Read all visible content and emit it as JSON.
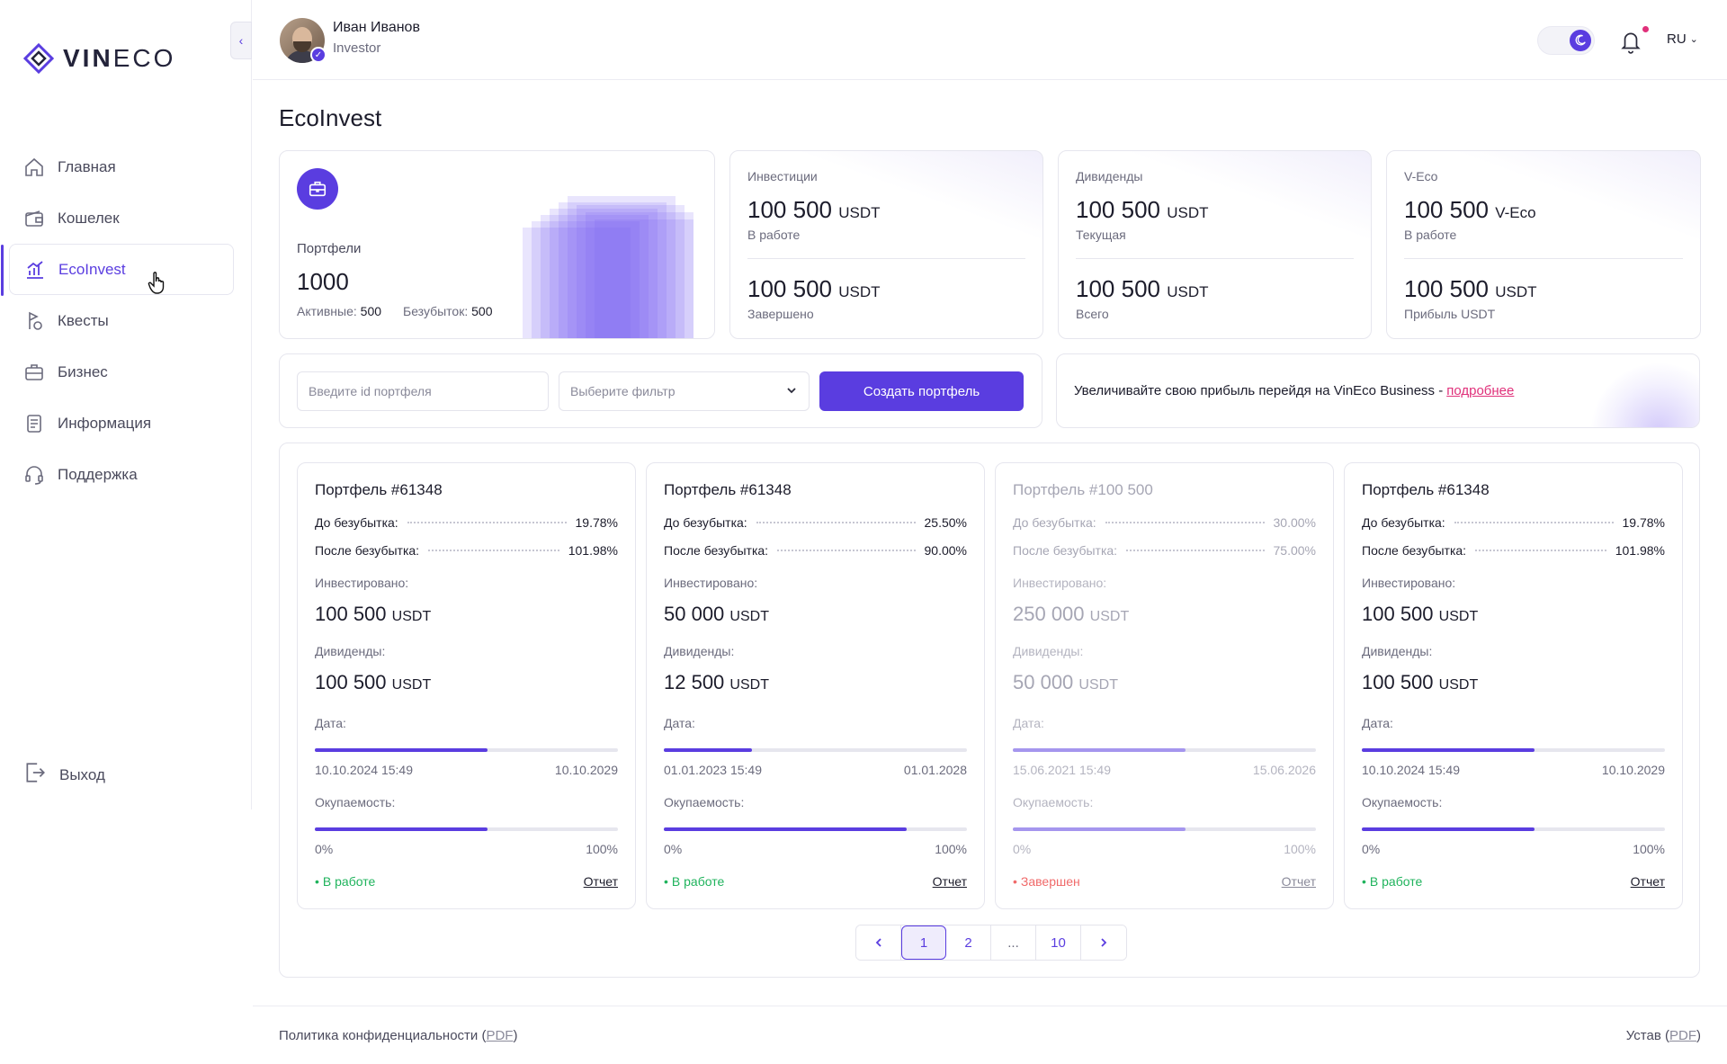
{
  "brand": {
    "name_bold": "VIN",
    "name_rest": "ECO"
  },
  "sidebar": {
    "items": [
      {
        "label": "Главная",
        "icon": "home-icon"
      },
      {
        "label": "Кошелек",
        "icon": "wallet-icon"
      },
      {
        "label": "EcoInvest",
        "icon": "chart-icon",
        "active": true
      },
      {
        "label": "Квесты",
        "icon": "quest-icon"
      },
      {
        "label": "Бизнес",
        "icon": "briefcase-icon"
      },
      {
        "label": "Информация",
        "icon": "document-icon"
      },
      {
        "label": "Поддержка",
        "icon": "headset-icon"
      }
    ],
    "logout": "Выход"
  },
  "header": {
    "user_name": "Иван Иванов",
    "user_role": "Investor",
    "lang": "RU"
  },
  "page": {
    "title": "EcoInvest"
  },
  "portfolio_summary": {
    "label": "Портфели",
    "value": "1000",
    "active_label": "Активные:",
    "active_value": "500",
    "loss_label": "Безубыток:",
    "loss_value": "500"
  },
  "stats": [
    {
      "title": "Инвестиции",
      "v1": "100 500",
      "u1": "USDT",
      "s1": "В работе",
      "v2": "100 500",
      "u2": "USDT",
      "s2": "Завершено"
    },
    {
      "title": "Дивиденды",
      "v1": "100 500",
      "u1": "USDT",
      "s1": "Текущая",
      "v2": "100 500",
      "u2": "USDT",
      "s2": "Всего"
    },
    {
      "title": "V-Eco",
      "v1": "100 500",
      "u1": "V-Eco",
      "s1": "В работе",
      "v2": "100 500",
      "u2": "USDT",
      "s2": "Прибыль USDT"
    }
  ],
  "filters": {
    "id_placeholder": "Введите id портфеля",
    "filter_placeholder": "Выберите фильтр",
    "create_label": "Создать портфель"
  },
  "promo": {
    "text": "Увеличивайте свою прибыль перейдя на VinEco Business -",
    "link": "подробнее"
  },
  "labels": {
    "before": "До безубытка:",
    "after": "После безубытка:",
    "invested": "Инвестировано:",
    "dividends": "Дивиденды:",
    "date": "Дата:",
    "payback": "Окупаемость:",
    "p0": "0%",
    "p100": "100%",
    "report": "Отчет"
  },
  "portfolios": [
    {
      "title": "Портфель #61348",
      "before": "19.78%",
      "after": "101.98%",
      "invested": "100 500",
      "dividends": "100 500",
      "unit": "USDT",
      "date_start": "10.10.2024 15:49",
      "date_end": "10.10.2029",
      "date_progress": 0.57,
      "payback_progress": 0.57,
      "status": "В работе",
      "finished": false
    },
    {
      "title": "Портфель #61348",
      "before": "25.50%",
      "after": "90.00%",
      "invested": "50 000",
      "dividends": "12 500",
      "unit": "USDT",
      "date_start": "01.01.2023 15:49",
      "date_end": "01.01.2028",
      "date_progress": 0.29,
      "payback_progress": 0.8,
      "status": "В работе",
      "finished": false
    },
    {
      "title": "Портфель #100 500",
      "before": "30.00%",
      "after": "75.00%",
      "invested": "250 000",
      "dividends": "50 000",
      "unit": "USDT",
      "date_start": "15.06.2021 15:49",
      "date_end": "15.06.2026",
      "date_progress": 0.57,
      "payback_progress": 0.57,
      "status": "Завершен",
      "finished": true
    },
    {
      "title": "Портфель #61348",
      "before": "19.78%",
      "after": "101.98%",
      "invested": "100 500",
      "dividends": "100 500",
      "unit": "USDT",
      "date_start": "10.10.2024 15:49",
      "date_end": "10.10.2029",
      "date_progress": 0.57,
      "payback_progress": 0.57,
      "status": "В работе",
      "finished": false
    }
  ],
  "pagination": {
    "pages": [
      "1",
      "2",
      "...",
      "10"
    ],
    "current": "1"
  },
  "footer": {
    "privacy": "Политика конфиденциальности",
    "charter": "Устав",
    "pdf": "PDF"
  },
  "colors": {
    "accent": "#5a3de0",
    "success": "#1fb35c",
    "danger": "#f06a6a",
    "link": "#e0307a"
  }
}
